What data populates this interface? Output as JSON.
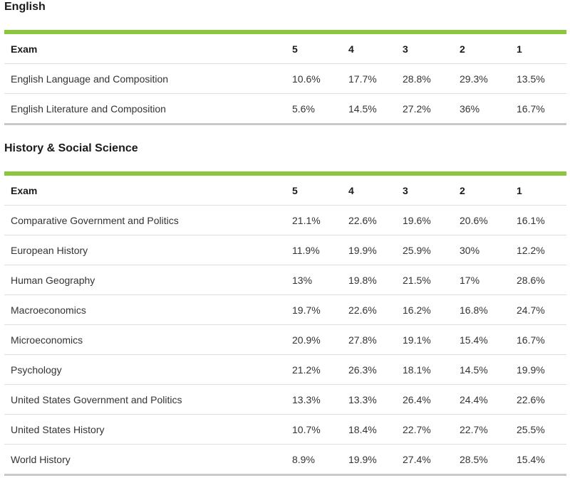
{
  "sections": {
    "english": {
      "title": "English",
      "headers": [
        "Exam",
        "5",
        "4",
        "3",
        "2",
        "1"
      ],
      "rows": [
        [
          "English Language and Composition",
          "10.6%",
          "17.7%",
          "28.8%",
          "29.3%",
          "13.5%"
        ],
        [
          "English Literature and Composition",
          "5.6%",
          "14.5%",
          "27.2%",
          "36%",
          "16.7%"
        ]
      ]
    },
    "history": {
      "title": "History & Social Science",
      "headers": [
        "Exam",
        "5",
        "4",
        "3",
        "2",
        "1"
      ],
      "rows": [
        [
          "Comparative Government and Politics",
          "21.1%",
          "22.6%",
          "19.6%",
          "20.6%",
          "16.1%"
        ],
        [
          "European History",
          "11.9%",
          "19.9%",
          "25.9%",
          "30%",
          "12.2%"
        ],
        [
          "Human Geography",
          "13%",
          "19.8%",
          "21.5%",
          "17%",
          "28.6%"
        ],
        [
          "Macroeconomics",
          "19.7%",
          "22.6%",
          "16.2%",
          "16.8%",
          "24.7%"
        ],
        [
          "Microeconomics",
          "20.9%",
          "27.8%",
          "19.1%",
          "15.4%",
          "16.7%"
        ],
        [
          "Psychology",
          "21.2%",
          "26.3%",
          "18.1%",
          "14.5%",
          "19.9%"
        ],
        [
          "United States Government and Politics",
          "13.3%",
          "13.3%",
          "26.4%",
          "24.4%",
          "22.6%"
        ],
        [
          "United States History",
          "10.7%",
          "18.4%",
          "22.7%",
          "22.7%",
          "25.5%"
        ],
        [
          "World History",
          "8.9%",
          "19.9%",
          "27.4%",
          "28.5%",
          "15.4%"
        ]
      ]
    }
  },
  "colors": {
    "accent": "#8cc63f",
    "row_divider": "#dedede",
    "bottom_rule": "#c9c9c9"
  }
}
